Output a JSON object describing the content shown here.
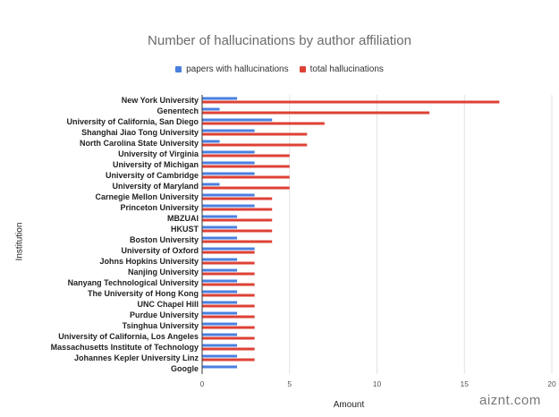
{
  "chart_data": {
    "type": "bar",
    "orientation": "horizontal",
    "title": "Number of hallucinations by author affiliation",
    "xlabel": "Amount",
    "ylabel": "Institution",
    "xlim": [
      0,
      20
    ],
    "xticks": [
      0,
      5,
      10,
      15,
      20
    ],
    "grid": true,
    "legend_position": "top",
    "categories": [
      "New York University",
      "Genentech",
      "University of California, San Diego",
      "Shanghai Jiao Tong University",
      "North Carolina State University",
      "University of Virginia",
      "University of Michigan",
      "University of Cambridge",
      "University of Maryland",
      "Carnegie Mellon University",
      "Princeton University",
      "MBZUAI",
      "HKUST",
      "Boston University",
      "University of Oxford",
      "Johns Hopkins University",
      "Nanjing University",
      "Nanyang Technological University",
      "The University of Hong Kong",
      "UNC Chapel Hill",
      "Purdue University",
      "Tsinghua University",
      "University of California, Los Angeles",
      "Massachusetts Institute of Technology",
      "Johannes Kepler University Linz",
      "Google"
    ],
    "series": [
      {
        "name": "papers with hallucinations",
        "color": "#4a7fe0",
        "values": [
          2,
          1,
          4,
          3,
          1,
          3,
          3,
          3,
          1,
          3,
          3,
          2,
          2,
          2,
          3,
          2,
          2,
          2,
          2,
          2,
          2,
          2,
          2,
          2,
          2,
          2
        ]
      },
      {
        "name": "total hallucinations",
        "color": "#de4135",
        "values": [
          17,
          13,
          7,
          6,
          6,
          5,
          5,
          5,
          5,
          4,
          4,
          4,
          4,
          4,
          3,
          3,
          3,
          3,
          3,
          3,
          3,
          3,
          3,
          3,
          3,
          0
        ]
      }
    ]
  },
  "watermark": "aiznt.com"
}
